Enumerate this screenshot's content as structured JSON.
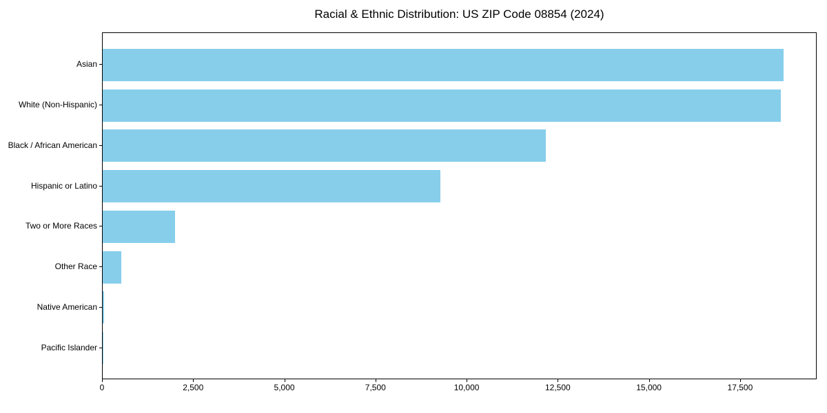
{
  "title": "Racial & Ethnic Distribution: US ZIP Code 08854 (2024)",
  "colors": {
    "bar": "#87CEEB",
    "axis": "#000000",
    "background": "#FFFFFF",
    "text": "#000000"
  },
  "chart_data": {
    "type": "bar",
    "orientation": "horizontal",
    "title": "Racial & Ethnic Distribution: US ZIP Code 08854 (2024)",
    "xlabel": "",
    "ylabel": "",
    "categories": [
      "Asian",
      "White (Non-Hispanic)",
      "Black / African American",
      "Hispanic or Latino",
      "Two or More Races",
      "Other Race",
      "Native American",
      "Pacific Islander"
    ],
    "values": [
      18670,
      18600,
      12150,
      9270,
      1990,
      510,
      30,
      10
    ],
    "xlim": [
      0,
      19600
    ],
    "xticks": [
      0,
      2500,
      5000,
      7500,
      10000,
      12500,
      15000,
      17500
    ],
    "xtick_labels": [
      "0",
      "2,500",
      "5,000",
      "7,500",
      "10,000",
      "12,500",
      "15,000",
      "17,500"
    ],
    "grid": false,
    "legend": null,
    "bar_color": "#87CEEB"
  }
}
